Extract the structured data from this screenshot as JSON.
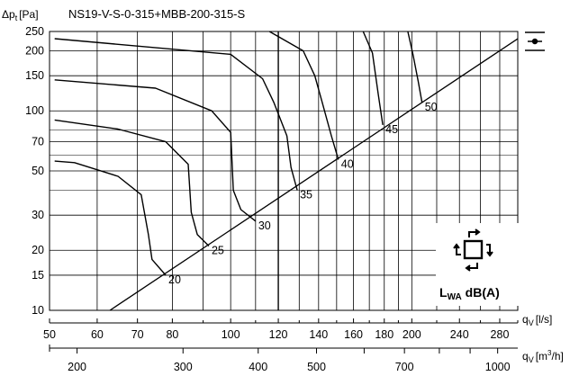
{
  "chart_data": {
    "type": "line",
    "title": "NS19-V-S-0-315+MBB-200-315-S",
    "ylabel": "Δp",
    "ylabel_sub": "t",
    "ylabel_unit": "[Pa]",
    "x_scale": "log",
    "y_scale": "log",
    "xlim": [
      50,
      300
    ],
    "ylim": [
      10,
      250
    ],
    "y_ticks": [
      10,
      15,
      20,
      30,
      50,
      70,
      100,
      150,
      200,
      250
    ],
    "x_ticks_ls": [
      50,
      60,
      70,
      80,
      100,
      120,
      140,
      160,
      180,
      200,
      240,
      280
    ],
    "x_ticks_m3h": [
      200,
      300,
      400,
      500,
      700,
      1000
    ],
    "x_unit_ls_sym": "q",
    "x_unit_ls_sub": "V",
    "x_unit_ls": "[l/s]",
    "x_unit_m3h_sym": "q",
    "x_unit_m3h_sub": "V",
    "x_unit_m3h": "[m",
    "x_unit_m3h_sup": "3",
    "x_unit_m3h_end": "/h]",
    "lwa_prefix": "L",
    "lwa_sub": "WA",
    "lwa_suffix": "dB(A)",
    "system_line": {
      "x": [
        63,
        300
      ],
      "y": [
        10,
        230
      ]
    },
    "series": [
      {
        "name": "20",
        "points": [
          [
            51,
            56
          ],
          [
            55,
            55
          ],
          [
            65,
            47
          ],
          [
            71,
            38
          ],
          [
            73,
            24
          ],
          [
            74,
            18
          ],
          [
            78,
            15
          ]
        ]
      },
      {
        "name": "25",
        "points": [
          [
            51,
            90
          ],
          [
            65,
            81
          ],
          [
            78,
            70
          ],
          [
            85,
            54
          ],
          [
            86,
            31
          ],
          [
            88,
            24
          ],
          [
            92,
            21
          ]
        ]
      },
      {
        "name": "30",
        "points": [
          [
            51,
            143
          ],
          [
            75,
            130
          ],
          [
            93,
            100
          ],
          [
            100,
            78
          ],
          [
            101,
            40
          ],
          [
            104,
            32
          ],
          [
            110,
            28
          ]
        ]
      },
      {
        "name": "35",
        "points": [
          [
            51,
            230
          ],
          [
            100,
            192
          ],
          [
            113,
            145
          ],
          [
            118,
            110
          ],
          [
            124,
            75
          ],
          [
            126,
            52
          ],
          [
            129,
            40
          ]
        ]
      },
      {
        "name": "40",
        "points": [
          [
            116,
            250
          ],
          [
            132,
            200
          ],
          [
            138,
            150
          ],
          [
            142,
            110
          ],
          [
            147,
            75
          ],
          [
            151,
            57
          ]
        ]
      },
      {
        "name": "45",
        "points": [
          [
            166,
            250
          ],
          [
            172,
            195
          ],
          [
            176,
            120
          ],
          [
            179,
            85
          ]
        ]
      },
      {
        "name": "50",
        "points": [
          [
            197,
            250
          ],
          [
            201,
            190
          ],
          [
            205,
            140
          ],
          [
            208,
            110
          ]
        ]
      }
    ]
  }
}
